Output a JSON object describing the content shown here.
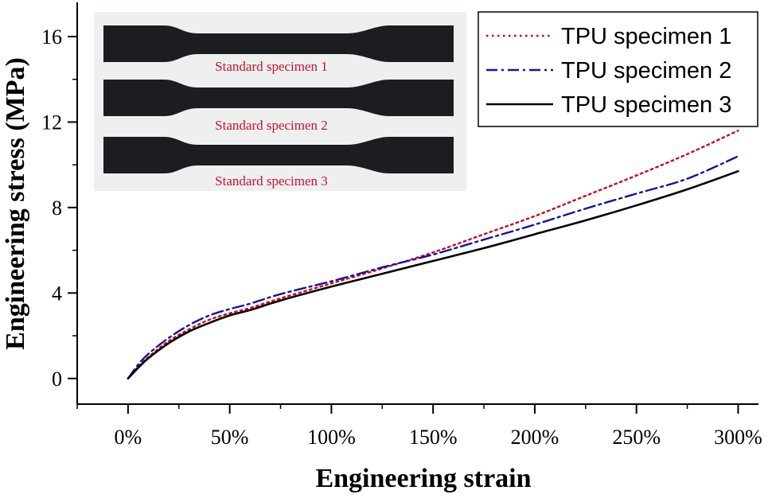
{
  "chart_data": {
    "type": "line",
    "xlabel": "Engineering strain",
    "ylabel": "Engineering stress (MPa)",
    "xlim": [
      -25,
      310
    ],
    "ylim": [
      -1.2,
      17.6
    ],
    "x_ticks": [
      0,
      50,
      100,
      150,
      200,
      250,
      300
    ],
    "x_tick_labels": [
      "0%",
      "50%",
      "100%",
      "150%",
      "200%",
      "250%",
      "300%"
    ],
    "y_ticks": [
      0,
      4,
      8,
      12,
      16
    ],
    "y_tick_labels": [
      "0",
      "4",
      "8",
      "12",
      "16"
    ],
    "grid": false,
    "legend_position": "top-right",
    "series": [
      {
        "name": "TPU specimen 1",
        "color": "#d0021b",
        "style": "dotted",
        "x": [
          0,
          5,
          10,
          20,
          30,
          40,
          50,
          60,
          75,
          100,
          125,
          150,
          175,
          200,
          225,
          250,
          275,
          300
        ],
        "y": [
          0,
          0.55,
          1.0,
          1.75,
          2.3,
          2.75,
          3.05,
          3.3,
          3.75,
          4.45,
          5.15,
          5.9,
          6.75,
          7.6,
          8.55,
          9.5,
          10.5,
          11.6
        ]
      },
      {
        "name": "TPU specimen 2",
        "color": "#1414a0",
        "style": "dashdot",
        "x": [
          0,
          5,
          10,
          20,
          30,
          40,
          50,
          60,
          75,
          100,
          125,
          150,
          175,
          200,
          225,
          250,
          275,
          300
        ],
        "y": [
          0,
          0.65,
          1.15,
          1.9,
          2.5,
          2.95,
          3.25,
          3.5,
          3.95,
          4.55,
          5.2,
          5.8,
          6.5,
          7.2,
          7.95,
          8.65,
          9.35,
          10.4
        ]
      },
      {
        "name": "TPU specimen 3",
        "color": "#000000",
        "style": "solid",
        "x": [
          0,
          5,
          10,
          20,
          30,
          40,
          50,
          60,
          75,
          100,
          125,
          150,
          175,
          200,
          225,
          250,
          275,
          300
        ],
        "y": [
          0,
          0.5,
          0.95,
          1.65,
          2.2,
          2.6,
          2.95,
          3.2,
          3.65,
          4.3,
          4.9,
          5.5,
          6.1,
          6.75,
          7.4,
          8.1,
          8.85,
          9.7
        ]
      }
    ]
  },
  "inset": {
    "specimen_labels": [
      "Standard specimen 1",
      "Standard specimen 2",
      "Standard specimen 3"
    ],
    "background": "#eef0f0",
    "specimen_color": "#1b1d20"
  }
}
